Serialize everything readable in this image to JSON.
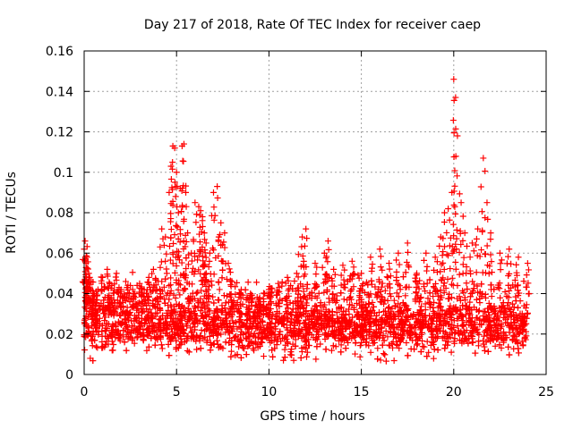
{
  "chart_data": {
    "type": "scatter",
    "title": "Day 217 of 2018, Rate Of TEC Index for receiver caep",
    "xlabel": "GPS time / hours",
    "ylabel": "ROTI / TECUs",
    "xlim": [
      0,
      25
    ],
    "ylim": [
      0,
      0.16
    ],
    "xticks": [
      0,
      5,
      10,
      15,
      20,
      25
    ],
    "xtick_labels": [
      "0",
      "5",
      "10",
      "15",
      "20",
      "25"
    ],
    "yticks": [
      0,
      0.02,
      0.04,
      0.06,
      0.08,
      0.1,
      0.12,
      0.14,
      0.16
    ],
    "ytick_labels": [
      "0",
      "0.02",
      "0.04",
      "0.06",
      "0.08",
      "0.1",
      "0.12",
      "0.14",
      "0.16"
    ],
    "grid": true,
    "marker": "+",
    "marker_color": "#ff0000",
    "series": [
      {
        "name": "ROTI",
        "x": [
          0.0,
          0.05,
          0.1,
          0.15,
          0.2,
          0.25,
          0.3,
          0.5,
          0.75,
          1.0,
          1.25,
          1.5,
          1.75,
          2.0,
          2.25,
          2.5,
          2.75,
          3.0,
          3.25,
          3.5,
          3.75,
          4.0,
          4.2,
          4.4,
          4.6,
          4.7,
          4.8,
          4.9,
          5.0,
          5.1,
          5.2,
          5.3,
          5.4,
          5.5,
          5.6,
          5.8,
          6.0,
          6.2,
          6.3,
          6.4,
          6.5,
          6.6,
          6.8,
          7.0,
          7.2,
          7.4,
          7.6,
          7.8,
          8.0,
          8.5,
          9.0,
          9.5,
          10.0,
          10.5,
          11.0,
          11.5,
          11.8,
          12.0,
          12.5,
          13.0,
          13.2,
          13.5,
          14.0,
          14.5,
          15.0,
          15.5,
          16.0,
          16.5,
          17.0,
          17.5,
          18.0,
          18.5,
          19.0,
          19.3,
          19.5,
          19.7,
          19.9,
          20.0,
          20.1,
          20.2,
          20.4,
          20.6,
          21.0,
          21.3,
          21.6,
          21.8,
          22.0,
          22.5,
          23.0,
          23.5,
          24.0
        ],
        "y": [
          0.062,
          0.066,
          0.055,
          0.058,
          0.045,
          0.05,
          0.048,
          0.04,
          0.042,
          0.048,
          0.052,
          0.044,
          0.05,
          0.042,
          0.046,
          0.044,
          0.04,
          0.045,
          0.042,
          0.048,
          0.052,
          0.046,
          0.072,
          0.068,
          0.09,
          0.103,
          0.113,
          0.112,
          0.1,
          0.08,
          0.092,
          0.113,
          0.114,
          0.09,
          0.07,
          0.06,
          0.085,
          0.083,
          0.081,
          0.078,
          0.07,
          0.065,
          0.06,
          0.09,
          0.093,
          0.075,
          0.07,
          0.055,
          0.046,
          0.042,
          0.04,
          0.038,
          0.042,
          0.045,
          0.048,
          0.05,
          0.068,
          0.072,
          0.055,
          0.06,
          0.066,
          0.052,
          0.054,
          0.056,
          0.05,
          0.058,
          0.062,
          0.055,
          0.06,
          0.065,
          0.05,
          0.06,
          0.058,
          0.068,
          0.08,
          0.082,
          0.09,
          0.146,
          0.137,
          0.118,
          0.085,
          0.07,
          0.065,
          0.072,
          0.107,
          0.085,
          0.07,
          0.06,
          0.062,
          0.058,
          0.055
        ]
      }
    ],
    "baseline_band": {
      "x_range": [
        0,
        24
      ],
      "y_typical_min": 0.005,
      "y_typical_max": 0.03
    }
  }
}
